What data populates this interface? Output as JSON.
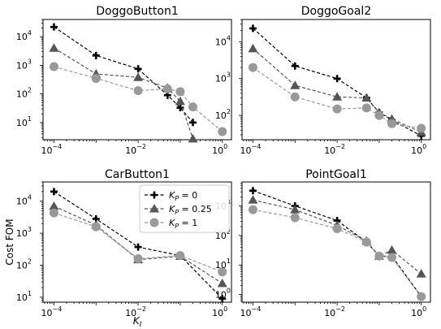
{
  "chart_data": {
    "type": "line",
    "x_log": true,
    "y_log": true,
    "xlabel": "K_I",
    "ylabel": "Cost FOM",
    "x_ticks": [
      {
        "value": 0.0001,
        "base": "10",
        "exp": "−4"
      },
      {
        "value": 0.01,
        "base": "10",
        "exp": "−2"
      },
      {
        "value": 1,
        "base": "10",
        "exp": "0"
      }
    ],
    "legend": {
      "placement": "top-right of CarButton1 panel",
      "entries": [
        {
          "prefix": "K",
          "sub": "P",
          "suffix": " = 0"
        },
        {
          "prefix": "K",
          "sub": "P",
          "suffix": " = 0.25"
        },
        {
          "prefix": "K",
          "sub": "P",
          "suffix": " = 1"
        }
      ]
    },
    "series_styles": [
      {
        "color": "#000000",
        "marker": "plus"
      },
      {
        "color": "#555555",
        "marker": "triangle"
      },
      {
        "color": "#999999",
        "marker": "circle"
      }
    ],
    "panels": [
      {
        "title": "DoggoButton1",
        "ylim": [
          2.5,
          40000
        ],
        "yticks": [
          {
            "value": 10,
            "exp": "1"
          },
          {
            "value": 100,
            "exp": "2"
          },
          {
            "value": 1000,
            "exp": "3"
          },
          {
            "value": 10000,
            "exp": "4"
          }
        ],
        "series": [
          {
            "x": [
              0.0001,
              0.001,
              0.01,
              0.05,
              0.1,
              0.2
            ],
            "y": [
              22000,
              2200,
              750,
              90,
              33,
              10
            ]
          },
          {
            "x": [
              0.0001,
              0.001,
              0.01,
              0.05,
              0.1,
              0.2
            ],
            "y": [
              4000,
              500,
              380,
              160,
              55,
              2.7
            ]
          },
          {
            "x": [
              0.0001,
              0.001,
              0.01,
              0.05,
              0.1,
              0.2,
              1
            ],
            "y": [
              900,
              350,
              130,
              150,
              120,
              35,
              4.8
            ]
          }
        ]
      },
      {
        "title": "DoggoGoal2",
        "ylim": [
          22,
          40000
        ],
        "yticks": [
          {
            "value": 100,
            "exp": "2"
          },
          {
            "value": 1000,
            "exp": "3"
          },
          {
            "value": 10000,
            "exp": "4"
          }
        ],
        "series": [
          {
            "x": [
              0.0001,
              0.001,
              0.01,
              0.05,
              0.1,
              0.2,
              1
            ],
            "y": [
              23000,
              2200,
              1000,
              300,
              120,
              75,
              28
            ]
          },
          {
            "x": [
              0.0001,
              0.001,
              0.01,
              0.05,
              0.1,
              0.2,
              1
            ],
            "y": [
              6500,
              650,
              320,
              300,
              120,
              80,
              35
            ]
          },
          {
            "x": [
              0.0001,
              0.001,
              0.01,
              0.05,
              0.1,
              0.2,
              1
            ],
            "y": [
              2000,
              320,
              150,
              160,
              100,
              60,
              45
            ]
          }
        ]
      },
      {
        "title": "CarButton1",
        "ylim": [
          7,
          40000
        ],
        "yticks": [
          {
            "value": 10,
            "exp": "1"
          },
          {
            "value": 100,
            "exp": "2"
          },
          {
            "value": 1000,
            "exp": "3"
          },
          {
            "value": 10000,
            "exp": "4"
          }
        ],
        "series": [
          {
            "x": [
              0.0001,
              0.001,
              0.01,
              0.1,
              1
            ],
            "y": [
              20000,
              2800,
              370,
              200,
              9
            ]
          },
          {
            "x": [
              0.0001,
              0.001,
              0.01,
              0.1,
              1
            ],
            "y": [
              7000,
              1800,
              150,
              190,
              27
            ]
          },
          {
            "x": [
              0.0001,
              0.001,
              0.01,
              0.1,
              1
            ],
            "y": [
              4300,
              1600,
              160,
              200,
              62
            ]
          }
        ]
      },
      {
        "title": "PointGoal1",
        "ylim": [
          0.55,
          6500
        ],
        "yticks": [
          {
            "value": 1,
            "exp": "0"
          },
          {
            "value": 10,
            "exp": "1"
          },
          {
            "value": 100,
            "exp": "2"
          },
          {
            "value": 1000,
            "exp": "3"
          }
        ],
        "series": [
          {
            "x": [
              0.0001,
              0.001,
              0.01,
              0.05,
              0.1,
              0.2,
              1
            ],
            "y": [
              3300,
              1000,
              320,
              60,
              20,
              20,
              0.85
            ]
          },
          {
            "x": [
              0.0001,
              0.001,
              0.01,
              0.05,
              0.1,
              0.2,
              1
            ],
            "y": [
              1600,
              750,
              220,
              65,
              20,
              32,
              5
            ]
          },
          {
            "x": [
              0.0001,
              0.001,
              0.01,
              0.05,
              0.1,
              0.2,
              1
            ],
            "y": [
              750,
              400,
              170,
              60,
              20,
              18,
              0.85
            ]
          }
        ]
      }
    ]
  }
}
